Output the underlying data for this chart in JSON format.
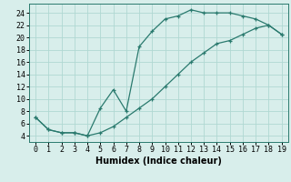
{
  "xlabel": "Humidex (Indice chaleur)",
  "xlim": [
    -0.5,
    19.5
  ],
  "ylim": [
    3.0,
    25.5
  ],
  "xticks": [
    0,
    1,
    2,
    3,
    4,
    5,
    6,
    7,
    8,
    9,
    10,
    11,
    12,
    13,
    14,
    15,
    16,
    17,
    18,
    19
  ],
  "yticks": [
    4,
    6,
    8,
    10,
    12,
    14,
    16,
    18,
    20,
    22,
    24
  ],
  "curve1_x": [
    0,
    1,
    2,
    3,
    4,
    5,
    6,
    7,
    8,
    9,
    10,
    11,
    12,
    13,
    14,
    15,
    16,
    17,
    18,
    19
  ],
  "curve1_y": [
    7.0,
    5.0,
    4.5,
    4.5,
    4.0,
    8.5,
    11.5,
    8.0,
    18.5,
    21.0,
    23.0,
    23.5,
    24.5,
    24.0,
    24.0,
    24.0,
    23.5,
    23.0,
    22.0,
    20.5
  ],
  "curve2_x": [
    0,
    1,
    2,
    3,
    4,
    5,
    6,
    7,
    8,
    9,
    10,
    11,
    12,
    13,
    14,
    15,
    16,
    17,
    18,
    19
  ],
  "curve2_y": [
    7.0,
    5.0,
    4.5,
    4.5,
    4.0,
    4.5,
    5.5,
    7.0,
    8.5,
    10.0,
    12.0,
    14.0,
    16.0,
    17.5,
    19.0,
    19.5,
    20.5,
    21.5,
    22.0,
    20.5
  ],
  "line_color": "#2a7a6e",
  "bg_color": "#d8eeeb",
  "grid_color": "#b0d8d2",
  "tick_fontsize": 6,
  "xlabel_fontsize": 7
}
